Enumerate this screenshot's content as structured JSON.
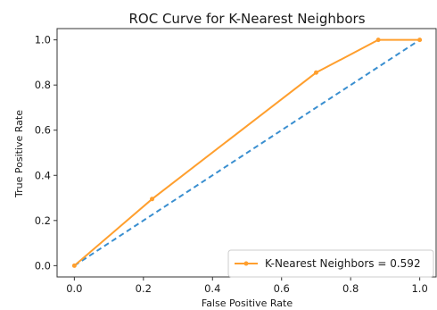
{
  "colors": {
    "knn": "#ff9f2e",
    "diagonal": "#3a8fd0",
    "axes": "#333333"
  },
  "chart_data": {
    "type": "line",
    "title": "ROC Curve for K-Nearest Neighbors",
    "xlabel": "False Positive Rate",
    "ylabel": "True Positive Rate",
    "xlim": [
      -0.05,
      1.05
    ],
    "ylim": [
      -0.05,
      1.05
    ],
    "xticks": [
      0.0,
      0.2,
      0.4,
      0.6,
      0.8,
      1.0
    ],
    "xtick_labels": [
      "0.0",
      "0.2",
      "0.4",
      "0.6",
      "0.8",
      "1.0"
    ],
    "yticks": [
      0.0,
      0.2,
      0.4,
      0.6,
      0.8,
      1.0
    ],
    "ytick_labels": [
      "0.0",
      "0.2",
      "0.4",
      "0.6",
      "0.8",
      "1.0"
    ],
    "grid": false,
    "legend_position": "lower-right",
    "series": [
      {
        "name": "K-Nearest Neighbors = 0.592",
        "style": "solid",
        "marker": "dot",
        "x": [
          0.0,
          0.225,
          0.7,
          0.88,
          1.0
        ],
        "y": [
          0.0,
          0.295,
          0.855,
          1.0,
          1.0
        ]
      },
      {
        "style": "dashed",
        "marker": "none",
        "x": [
          0.0,
          1.0
        ],
        "y": [
          0.0,
          1.0
        ]
      }
    ]
  }
}
